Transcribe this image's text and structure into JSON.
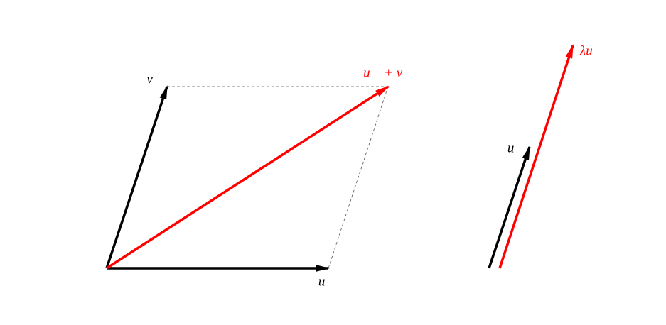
{
  "labels": {
    "v": "v⃗",
    "sum": "u⃗ + v⃗",
    "u": "u⃗",
    "u_right": "u⃗",
    "lambda_u": "λu⃗"
  }
}
